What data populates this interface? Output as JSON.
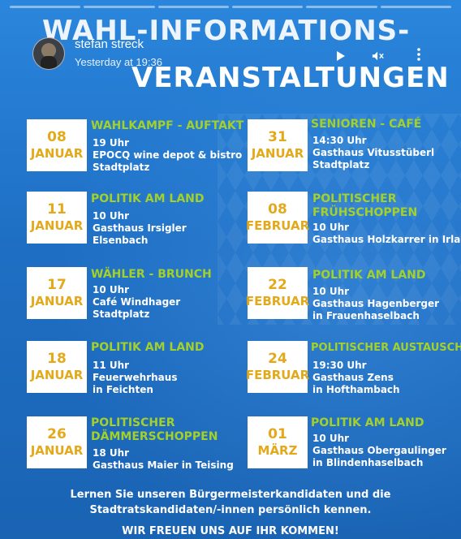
{
  "story": {
    "user_name": "stefan streck",
    "timestamp": "Yesterday at 19:36",
    "icons": [
      "play-icon",
      "mute-icon",
      "more-icon"
    ]
  },
  "poster": {
    "title_line1": "WAHL-INFORMATIONS-",
    "title_line2": "VERANSTALTUNGEN",
    "events": [
      {
        "day": "08",
        "month": "JANUAR",
        "title": [
          "WAHLKAMPF - AUFTAKT"
        ],
        "lines": [
          "19 Uhr",
          "EPOCQ wine depot & bistro",
          "Stadtplatz"
        ]
      },
      {
        "day": "11",
        "month": "JANUAR",
        "title": [
          "POLITIK AM LAND"
        ],
        "lines": [
          "10 Uhr",
          "Gasthaus Irsigler",
          "Elsenbach"
        ]
      },
      {
        "day": "17",
        "month": "JANUAR",
        "title": [
          "WÄHLER - BRUNCH"
        ],
        "lines": [
          "10 Uhr",
          "Café Windhager",
          "Stadtplatz"
        ]
      },
      {
        "day": "18",
        "month": "JANUAR",
        "title": [
          "POLITIK AM LAND"
        ],
        "lines": [
          "11 Uhr",
          "Feuerwehrhaus",
          "in Feichten"
        ]
      },
      {
        "day": "26",
        "month": "JANUAR",
        "title": [
          "POLITISCHER",
          "DÄMMERSCHOPPEN"
        ],
        "lines": [
          "18 Uhr",
          "Gasthaus Maier in Teising"
        ]
      },
      {
        "day": "31",
        "month": "JANUAR",
        "title": [
          "SENIOREN - CAFÉ"
        ],
        "lines": [
          "14:30 Uhr",
          "Gasthaus Vitusstüberl",
          "Stadtplatz"
        ]
      },
      {
        "day": "08",
        "month": "FEBRUAR",
        "title": [
          "POLITISCHER",
          "FRÜHSCHOPPEN"
        ],
        "lines": [
          "10 Uhr",
          "Gasthaus Holzkarrer in Irlau"
        ]
      },
      {
        "day": "22",
        "month": "FEBRUAR",
        "title": [
          "POLITIK AM LAND"
        ],
        "lines": [
          "10 Uhr",
          "Gasthaus Hagenberger",
          "in Frauenhaselbach"
        ]
      },
      {
        "day": "24",
        "month": "FEBRUAR",
        "title": [
          "POLITISCHER AUSTAUSCH"
        ],
        "lines": [
          "19:30 Uhr",
          "Gasthaus Zens",
          "in Hofthambach"
        ]
      },
      {
        "day": "01",
        "month": "MÄRZ",
        "title": [
          "POLITIK AM LAND"
        ],
        "lines": [
          "10 Uhr",
          "Gasthaus Obergaulinger",
          "in Blindenhaselbach"
        ]
      }
    ],
    "footer_line1": "Lernen Sie unseren Bürgermeisterkandidaten und die",
    "footer_line2": "Stadtratskandidaten/-innen persönlich kennen.",
    "footer_line3": "WIR FREUEN UNS AUF IHR KOMMEN!"
  },
  "colors": {
    "date_text": "#e3a91b",
    "title_text": "#a3d12a",
    "background": "#1f72c6"
  }
}
